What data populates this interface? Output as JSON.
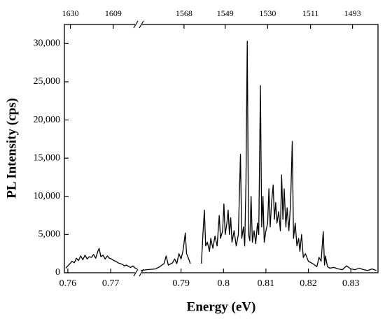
{
  "chart_data": {
    "type": "line",
    "xlabel": "Energy (eV)",
    "ylabel": "PL Intensity (cps)",
    "xlim": [
      0.7592,
      0.8364
    ],
    "xbreak": [
      0.7765,
      0.78
    ],
    "xticks": [
      0.76,
      0.77,
      0.79,
      0.8,
      0.81,
      0.82,
      0.83
    ],
    "x2ticks": [
      {
        "value": 0.7606,
        "label": "1630"
      },
      {
        "value": 0.7706,
        "label": "1609"
      },
      {
        "value": 0.7907,
        "label": "1568"
      },
      {
        "value": 0.8004,
        "label": "1549"
      },
      {
        "value": 0.8104,
        "label": "1530"
      },
      {
        "value": 0.8205,
        "label": "1511"
      },
      {
        "value": 0.8304,
        "label": "1493"
      }
    ],
    "ylim": [
      0,
      32500
    ],
    "yticks": [
      0,
      {
        "value": 5000,
        "label": "5,000"
      },
      {
        "value": 10000,
        "label": "10,000"
      },
      {
        "value": 15000,
        "label": "15,000"
      },
      {
        "value": 20000,
        "label": "20,000"
      },
      {
        "value": 25000,
        "label": "25,000"
      },
      {
        "value": 30000,
        "label": "30,000"
      }
    ],
    "color": "#000000",
    "x": [
      0.7595,
      0.76,
      0.7605,
      0.761,
      0.7615,
      0.762,
      0.7625,
      0.763,
      0.7635,
      0.764,
      0.7645,
      0.765,
      0.7655,
      0.766,
      0.7665,
      0.767,
      0.7673,
      0.7677,
      0.7682,
      0.7687,
      0.7692,
      0.7697,
      0.7702,
      0.7707,
      0.7712,
      0.7717,
      0.7722,
      0.7727,
      0.7732,
      0.7737,
      0.7742,
      0.7747,
      0.7752,
      0.7757,
      0.7762,
      0.778,
      0.7805,
      0.782,
      0.784,
      0.785,
      0.786,
      0.7865,
      0.787,
      0.788,
      0.7885,
      0.789,
      0.7895,
      0.79,
      0.7905,
      0.791,
      0.7913,
      0.7918,
      0.7922,
      0.7935,
      0.7948,
      0.7952,
      0.7955,
      0.7958,
      0.7962,
      0.7967,
      0.797,
      0.7975,
      0.798,
      0.7985,
      0.799,
      0.7993,
      0.7998,
      0.8001,
      0.8004,
      0.8008,
      0.8011,
      0.8014,
      0.8017,
      0.802,
      0.8025,
      0.803,
      0.8035,
      0.804,
      0.8043,
      0.8047,
      0.805,
      0.8053,
      0.8056,
      0.8059,
      0.8062,
      0.8065,
      0.8068,
      0.8072,
      0.8076,
      0.808,
      0.8083,
      0.8087,
      0.809,
      0.8093,
      0.8096,
      0.81,
      0.8104,
      0.8107,
      0.811,
      0.8113,
      0.8117,
      0.812,
      0.8123,
      0.8126,
      0.813,
      0.8134,
      0.8137,
      0.814,
      0.8143,
      0.8147,
      0.815,
      0.8154,
      0.8158,
      0.8162,
      0.8165,
      0.8169,
      0.8173,
      0.8177,
      0.818,
      0.8184,
      0.8188,
      0.8193,
      0.82,
      0.821,
      0.822,
      0.8225,
      0.823,
      0.8235,
      0.8238,
      0.824,
      0.8245,
      0.825,
      0.826,
      0.827,
      0.828,
      0.829,
      0.83,
      0.831,
      0.832,
      0.833,
      0.834,
      0.835,
      0.836
    ],
    "values": [
      600,
      900,
      1200,
      1500,
      1300,
      1900,
      1600,
      2200,
      1700,
      2300,
      1800,
      2100,
      2000,
      2400,
      1900,
      2800,
      3200,
      2100,
      2300,
      1800,
      2200,
      1900,
      1800,
      1600,
      1500,
      1300,
      1200,
      1100,
      900,
      1000,
      800,
      700,
      900,
      600,
      500,
      null,
      300,
      400,
      500,
      800,
      1200,
      2200,
      1000,
      1300,
      1800,
      1200,
      2500,
      1800,
      3000,
      5200,
      2500,
      1800,
      1200,
      null,
      1200,
      5500,
      8200,
      3500,
      4000,
      2800,
      4500,
      3200,
      4800,
      3500,
      7500,
      4500,
      5500,
      9000,
      5000,
      6500,
      8200,
      5000,
      7200,
      4000,
      5500,
      3500,
      5000,
      15500,
      4500,
      6000,
      3500,
      12000,
      30300,
      5000,
      4200,
      10000,
      4000,
      5500,
      3800,
      6500,
      5000,
      24500,
      6000,
      10000,
      4000,
      5500,
      6500,
      11000,
      6000,
      9000,
      11500,
      7000,
      9200,
      6500,
      8000,
      5500,
      12800,
      7000,
      11000,
      6000,
      8500,
      5500,
      9000,
      17200,
      4500,
      6500,
      3500,
      4500,
      2800,
      5000,
      2000,
      2500,
      1500,
      1200,
      800,
      2000,
      1500,
      5400,
      1000,
      2200,
      800,
      600,
      700,
      500,
      400,
      900,
      500,
      400,
      600,
      400,
      300,
      500,
      300
    ]
  }
}
